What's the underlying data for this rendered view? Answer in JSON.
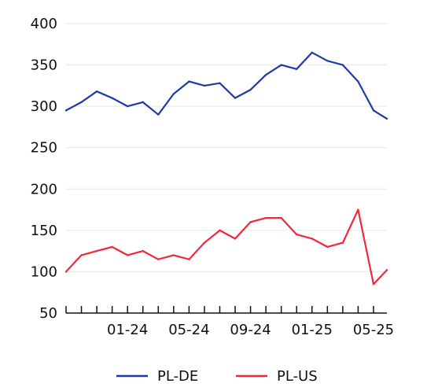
{
  "chart_data": {
    "type": "line",
    "title": "",
    "xlabel": "",
    "ylabel": "",
    "x_ticks": [
      "01-24",
      "05-24",
      "09-24",
      "01-25",
      "05-25"
    ],
    "y_ticks": [
      "400",
      "350",
      "300",
      "250",
      "200",
      "150",
      "100",
      "50"
    ],
    "ylim": [
      50,
      400
    ],
    "x": [
      "2023-09",
      "2023-10",
      "2023-11",
      "2023-12",
      "2024-01",
      "2024-02",
      "2024-03",
      "2024-04",
      "2024-05",
      "2024-06",
      "2024-07",
      "2024-08",
      "2024-09",
      "2024-10",
      "2024-11",
      "2024-12",
      "2025-01",
      "2025-02",
      "2025-03",
      "2025-04",
      "2025-05",
      "2025-05-28"
    ],
    "grid": "horizontal",
    "legend_position": "bottom",
    "series": [
      {
        "name": "PL-DE",
        "color": "#1f3aa8",
        "values": [
          295,
          305,
          318,
          310,
          300,
          305,
          290,
          315,
          330,
          325,
          328,
          310,
          320,
          338,
          350,
          345,
          365,
          355,
          350,
          330,
          295,
          285
        ]
      },
      {
        "name": "PL-US",
        "color": "#f0283c",
        "values": [
          100,
          120,
          125,
          130,
          120,
          125,
          115,
          120,
          115,
          135,
          150,
          140,
          160,
          165,
          165,
          145,
          140,
          130,
          135,
          175,
          85,
          102
        ]
      }
    ]
  }
}
